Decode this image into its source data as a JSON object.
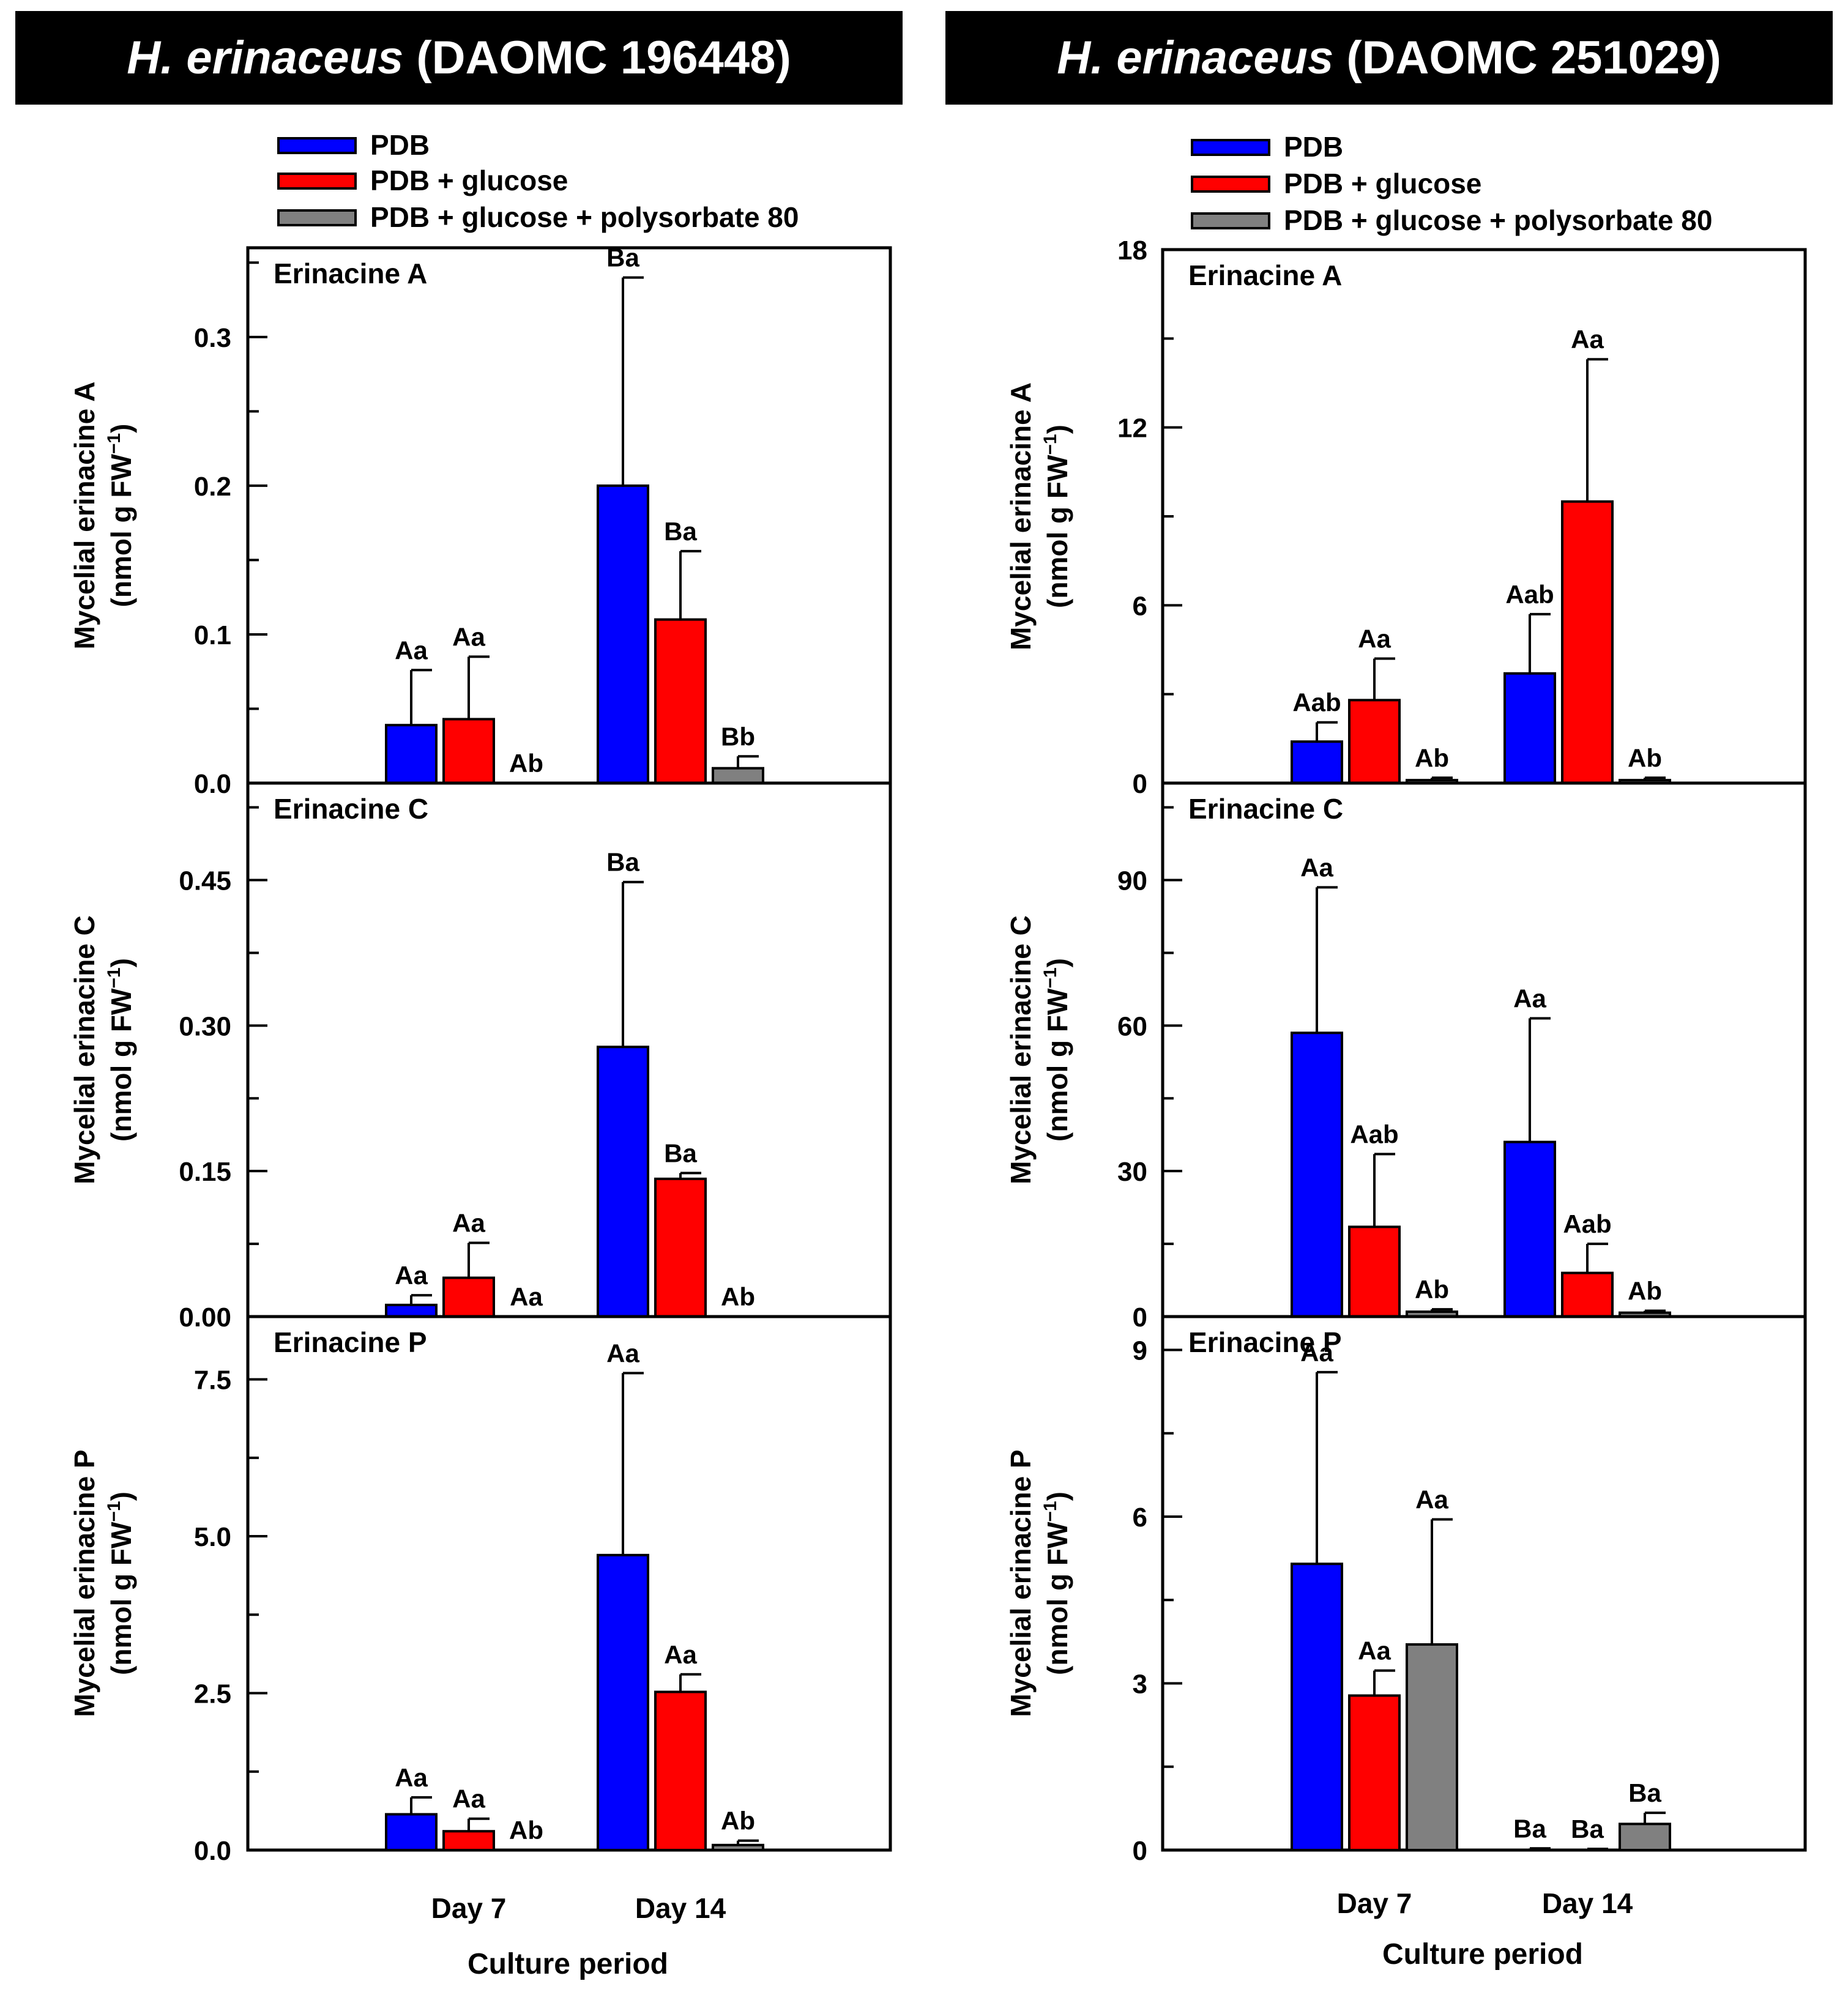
{
  "titles": {
    "left": {
      "species": "H. erinaceus",
      "strain": " (DAOMC 196448)"
    },
    "right": {
      "species": "H. erinaceus",
      "strain": " (DAOMC 251029)"
    }
  },
  "chart_data": [
    {
      "type": "bar",
      "strain": "H. erinaceus (DAOMC 196448)",
      "legend": [
        "PDB",
        "PDB + glucose",
        "PDB + glucose + polysorbate 80"
      ],
      "colors": [
        "#0000ff",
        "#ff0000",
        "#808080"
      ],
      "categories": [
        "Day 7",
        "Day 14"
      ],
      "xlabel": "Culture period",
      "panels": [
        {
          "title": "Erinacine A",
          "ylabel": "Mycelial erinacine A",
          "ylim": [
            0,
            0.36
          ],
          "yticks": [
            0.0,
            0.1,
            0.2,
            0.3
          ],
          "yticklabels": [
            "0.0",
            "0.1",
            "0.2",
            "0.3"
          ],
          "series": [
            {
              "name": "PDB",
              "values": [
                0.039,
                0.2
              ],
              "errors": [
                0.037,
                0.14
              ],
              "letters": [
                "Aa",
                "Ba"
              ]
            },
            {
              "name": "PDB + glucose",
              "values": [
                0.043,
                0.11
              ],
              "errors": [
                0.042,
                0.046
              ],
              "letters": [
                "Aa",
                "Ba"
              ]
            },
            {
              "name": "PDB + glucose + polysorbate 80",
              "values": [
                0.0,
                0.01
              ],
              "errors": [
                0.0,
                0.008
              ],
              "letters": [
                "Ab",
                "Bb"
              ]
            }
          ]
        },
        {
          "title": "Erinacine C",
          "ylabel": "Mycelial erinacine C",
          "ylim": [
            0,
            0.55
          ],
          "yticks": [
            0.0,
            0.15,
            0.3,
            0.45
          ],
          "yticklabels": [
            "0.00",
            "0.15",
            "0.30",
            "0.45"
          ],
          "series": [
            {
              "name": "PDB",
              "values": [
                0.012,
                0.278
              ],
              "errors": [
                0.01,
                0.17
              ],
              "letters": [
                "Aa",
                "Ba"
              ]
            },
            {
              "name": "PDB + glucose",
              "values": [
                0.04,
                0.142
              ],
              "errors": [
                0.036,
                0.006
              ],
              "letters": [
                "Aa",
                "Ba"
              ]
            },
            {
              "name": "PDB + glucose + polysorbate 80",
              "values": [
                0.0,
                0.0
              ],
              "errors": [
                0.0,
                0.0
              ],
              "letters": [
                "Aa",
                "Ab"
              ]
            }
          ]
        },
        {
          "title": "Erinacine P",
          "ylabel": "Mycelial erinacine P",
          "ylim": [
            0,
            8.5
          ],
          "yticks": [
            0.0,
            2.5,
            5.0,
            7.5
          ],
          "yticklabels": [
            "0.0",
            "2.5",
            "5.0",
            "7.5"
          ],
          "series": [
            {
              "name": "PDB",
              "values": [
                0.57,
                4.7
              ],
              "errors": [
                0.27,
                2.9
              ],
              "letters": [
                "Aa",
                "Aa"
              ]
            },
            {
              "name": "PDB + glucose",
              "values": [
                0.3,
                2.52
              ],
              "errors": [
                0.2,
                0.28
              ],
              "letters": [
                "Aa",
                "Aa"
              ]
            },
            {
              "name": "PDB + glucose + polysorbate 80",
              "values": [
                0.0,
                0.08
              ],
              "errors": [
                0.0,
                0.07
              ],
              "letters": [
                "Ab",
                "Ab"
              ]
            }
          ]
        }
      ]
    },
    {
      "type": "bar",
      "strain": "H. erinaceus (DAOMC 251029)",
      "legend": [
        "PDB",
        "PDB + glucose",
        "PDB + glucose + polysorbate 80"
      ],
      "colors": [
        "#0000ff",
        "#ff0000",
        "#808080"
      ],
      "categories": [
        "Day 7",
        "Day 14"
      ],
      "xlabel": "Culture period",
      "panels": [
        {
          "title": "Erinacine A",
          "ylabel": "Mycelial erinacine A",
          "ylim": [
            0,
            18
          ],
          "yticks": [
            0,
            6,
            12,
            18
          ],
          "yticklabels": [
            "0",
            "6",
            "12",
            "18"
          ],
          "series": [
            {
              "name": "PDB",
              "values": [
                1.4,
                3.7
              ],
              "errors": [
                0.65,
                2.0
              ],
              "letters": [
                "Aab",
                "Aab"
              ]
            },
            {
              "name": "PDB + glucose",
              "values": [
                2.8,
                9.5
              ],
              "errors": [
                1.4,
                4.8
              ],
              "letters": [
                "Aa",
                "Aa"
              ]
            },
            {
              "name": "PDB + glucose + polysorbate 80",
              "values": [
                0.1,
                0.1
              ],
              "errors": [
                0.08,
                0.08
              ],
              "letters": [
                "Ab",
                "Ab"
              ]
            }
          ]
        },
        {
          "title": "Erinacine C",
          "ylabel": "Mycelial erinacine C",
          "ylim": [
            0,
            110
          ],
          "yticks": [
            0,
            30,
            60,
            90
          ],
          "yticklabels": [
            "0",
            "30",
            "60",
            "90"
          ],
          "series": [
            {
              "name": "PDB",
              "values": [
                58.5,
                36.0
              ],
              "errors": [
                30.0,
                25.5
              ],
              "letters": [
                "Aa",
                "Aa"
              ]
            },
            {
              "name": "PDB + glucose",
              "values": [
                18.5,
                9.0
              ],
              "errors": [
                15.0,
                6.0
              ],
              "letters": [
                "Aab",
                "Aab"
              ]
            },
            {
              "name": "PDB + glucose + polysorbate 80",
              "values": [
                1.0,
                0.8
              ],
              "errors": [
                0.5,
                0.4
              ],
              "letters": [
                "Ab",
                "Ab"
              ]
            }
          ]
        },
        {
          "title": "Erinacine P",
          "ylabel": "Mycelial erinacine P",
          "ylim": [
            0,
            9.6
          ],
          "yticks": [
            0,
            3,
            6,
            9
          ],
          "yticklabels": [
            "0",
            "3",
            "6",
            "9"
          ],
          "series": [
            {
              "name": "PDB",
              "values": [
                5.15,
                0.0
              ],
              "errors": [
                3.45,
                0.03
              ],
              "letters": [
                "Aa",
                "Ba"
              ]
            },
            {
              "name": "PDB + glucose",
              "values": [
                2.78,
                0.0
              ],
              "errors": [
                0.45,
                0.02
              ],
              "letters": [
                "Aa",
                "Ba"
              ]
            },
            {
              "name": "PDB + glucose + polysorbate 80",
              "values": [
                3.7,
                0.47
              ],
              "errors": [
                2.25,
                0.2
              ],
              "letters": [
                "Aa",
                "Ba"
              ]
            }
          ]
        }
      ]
    }
  ]
}
